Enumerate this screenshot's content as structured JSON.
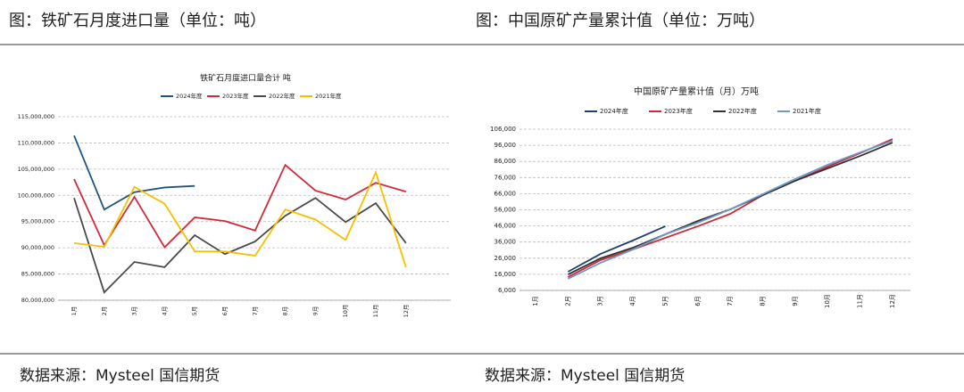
{
  "headers": [
    "图：铁矿石月度进口量（单位：吨）",
    "图：中国原矿产量累计值（单位：万吨）"
  ],
  "sources": [
    "数据来源：Mysteel 国信期货",
    "数据来源：Mysteel 国信期货"
  ],
  "chart_data": [
    {
      "type": "line",
      "title": "铁矿石月度进口量合计 吨",
      "grid": true,
      "categories": [
        "1月",
        "2月",
        "3月",
        "4月",
        "5月",
        "6月",
        "7月",
        "8月",
        "9月",
        "10月",
        "11月",
        "12月"
      ],
      "ylim": [
        80000000,
        115000000
      ],
      "yticks": [
        {
          "value": 80000000,
          "label": "80,000,000"
        },
        {
          "value": 85000000,
          "label": "85,000,000"
        },
        {
          "value": 90000000,
          "label": "90,000,000"
        },
        {
          "value": 95000000,
          "label": "95,000,000"
        },
        {
          "value": 100000000,
          "label": "100,000,000"
        },
        {
          "value": 105000000,
          "label": "105,000,000"
        },
        {
          "value": 110000000,
          "label": "110,000,000"
        },
        {
          "value": 115000000,
          "label": "115,000,000"
        }
      ],
      "series": [
        {
          "name": "2024年度",
          "color": "#1f5582",
          "values": [
            111400000,
            97300000,
            100600000,
            101500000,
            101800000,
            null,
            null,
            null,
            null,
            null,
            null,
            null
          ]
        },
        {
          "name": "2023年度",
          "color": "#d12a3a",
          "values": [
            103100000,
            90500000,
            99700000,
            90100000,
            95800000,
            95100000,
            93300000,
            105800000,
            100900000,
            99200000,
            102400000,
            100700000
          ]
        },
        {
          "name": "2022年度",
          "color": "#4a4a4a",
          "values": [
            99500000,
            81500000,
            87300000,
            86300000,
            92400000,
            88800000,
            91200000,
            96100000,
            99500000,
            94900000,
            98500000,
            90900000
          ]
        },
        {
          "name": "2021年度",
          "color": "#f6c000",
          "values": [
            90900000,
            90200000,
            101600000,
            98400000,
            89300000,
            89300000,
            88500000,
            97300000,
            95400000,
            91500000,
            104400000,
            86300000
          ]
        }
      ]
    },
    {
      "type": "line",
      "title": "中国原矿产量累计值（月）万吨",
      "grid": true,
      "categories": [
        "1月",
        "2月",
        "3月",
        "4月",
        "5月",
        "6月",
        "7月",
        "8月",
        "9月",
        "10月",
        "11月",
        "12月"
      ],
      "ylim": [
        6000,
        106000
      ],
      "yticks": [
        {
          "value": 6000,
          "label": "6,000"
        },
        {
          "value": 16000,
          "label": "16,000"
        },
        {
          "value": 26000,
          "label": "26,000"
        },
        {
          "value": 36000,
          "label": "36,000"
        },
        {
          "value": 46000,
          "label": "46,000"
        },
        {
          "value": 56000,
          "label": "56,000"
        },
        {
          "value": 66000,
          "label": "66,000"
        },
        {
          "value": 76000,
          "label": "76,000"
        },
        {
          "value": 86000,
          "label": "86,000"
        },
        {
          "value": 96000,
          "label": "96,000"
        },
        {
          "value": 106000,
          "label": "106,000"
        }
      ],
      "series": [
        {
          "name": "2024年度",
          "color": "#1f3f6e",
          "values": [
            null,
            17600,
            28600,
            37000,
            45800,
            null,
            null,
            null,
            null,
            null,
            null,
            null
          ]
        },
        {
          "name": "2023年度",
          "color": "#d12a3a",
          "values": [
            null,
            14300,
            24800,
            31400,
            38600,
            45800,
            53500,
            65100,
            74000,
            82800,
            91100,
            99900
          ]
        },
        {
          "name": "2022年度",
          "color": "#333333",
          "values": [
            null,
            15900,
            25900,
            32500,
            40800,
            49100,
            56300,
            65100,
            74000,
            81700,
            89400,
            97700
          ]
        },
        {
          "name": "2021年度",
          "color": "#6a9ac9",
          "values": [
            null,
            13200,
            23100,
            31400,
            40800,
            48000,
            56300,
            65700,
            75100,
            83900,
            91600,
            98800
          ]
        }
      ]
    }
  ]
}
